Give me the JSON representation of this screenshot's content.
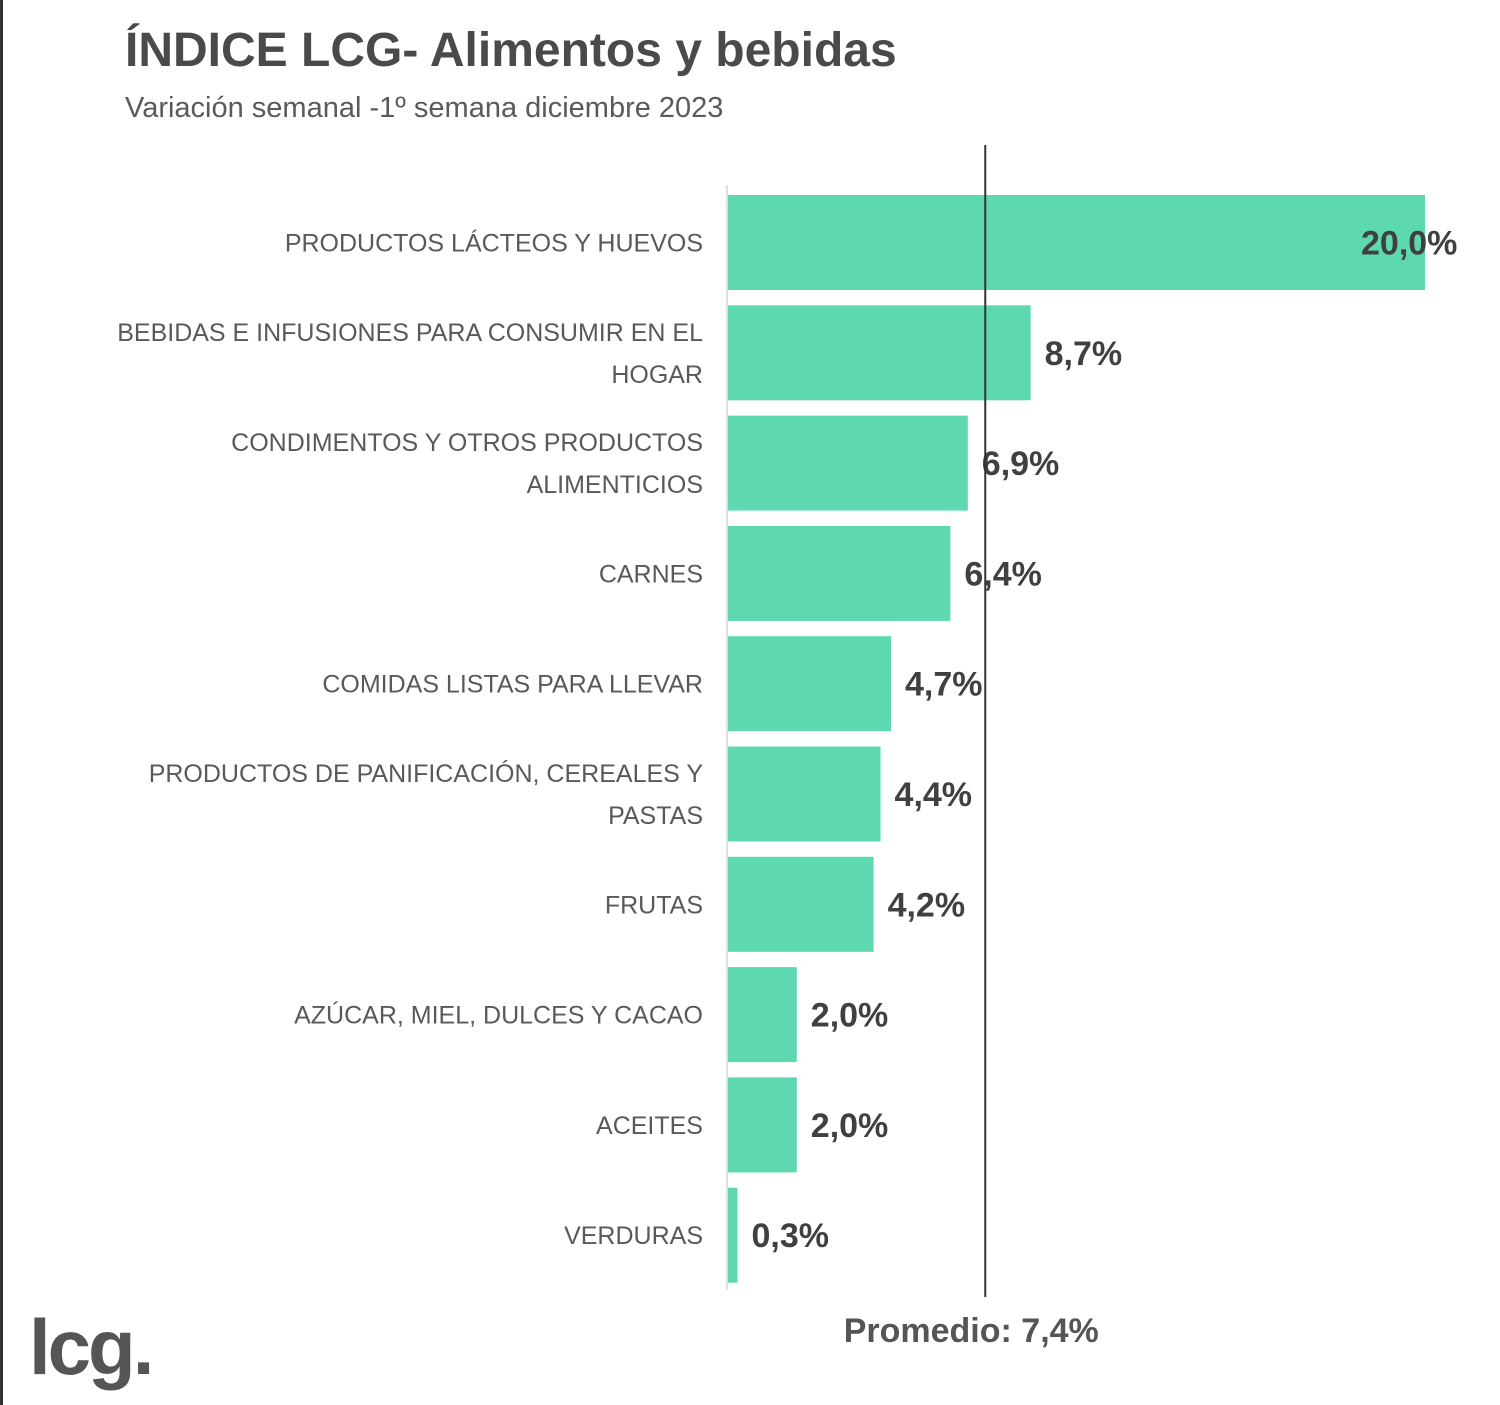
{
  "chart_data": {
    "type": "bar",
    "orientation": "horizontal",
    "title": "ÍNDICE LCG- Alimentos y bebidas",
    "subtitle": "Variación semanal -1º semana diciembre 2023",
    "categories": [
      "PRODUCTOS LÁCTEOS Y HUEVOS",
      "BEBIDAS E INFUSIONES PARA CONSUMIR EN EL HOGAR",
      "CONDIMENTOS Y OTROS PRODUCTOS ALIMENTICIOS",
      "CARNES",
      "COMIDAS LISTAS PARA LLEVAR",
      "PRODUCTOS DE PANIFICACIÓN, CEREALES Y PASTAS",
      "FRUTAS",
      "AZÚCAR, MIEL, DULCES Y CACAO",
      "ACEITES",
      "VERDURAS"
    ],
    "values": [
      20.0,
      8.7,
      6.9,
      6.4,
      4.7,
      4.4,
      4.2,
      2.0,
      2.0,
      0.3
    ],
    "value_labels": [
      "20,0%",
      "8,7%",
      "6,9%",
      "6,4%",
      "4,7%",
      "4,4%",
      "4,2%",
      "2,0%",
      "2,0%",
      "0,3%"
    ],
    "average": 7.4,
    "average_label": "Promedio: 7,4%",
    "xlim": [
      0,
      20
    ],
    "xlabel": "",
    "ylabel": "",
    "grid": false,
    "bar_color": "#5dd8b1"
  },
  "logo": "lcg."
}
